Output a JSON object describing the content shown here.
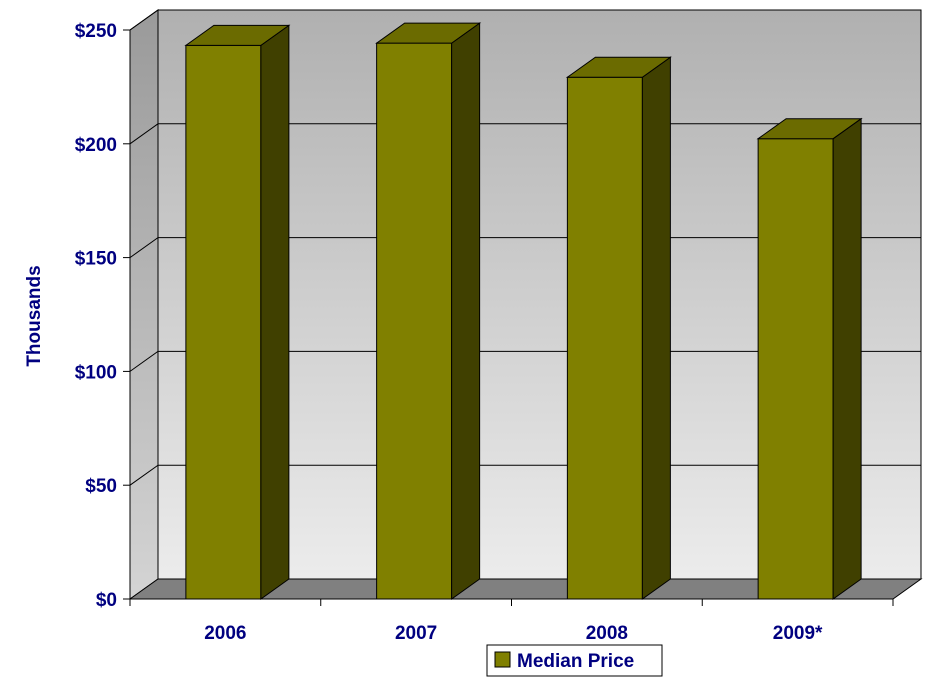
{
  "chart_data": {
    "type": "bar",
    "categories": [
      "2006",
      "2007",
      "2008",
      "2009*"
    ],
    "series": [
      {
        "name": "Median Price",
        "values": [
          245,
          246,
          231,
          204
        ]
      }
    ],
    "ylabel": "Thousands",
    "ylim": [
      0,
      250
    ],
    "y_ticks": [
      0,
      50,
      100,
      150,
      200,
      250
    ],
    "y_tick_labels": [
      "$0",
      "$50",
      "$100",
      "$150",
      "$200",
      "$250"
    ],
    "grid": true,
    "three_d": true,
    "legend": {
      "position": "bottom"
    },
    "colors": {
      "bar_front": "#808000",
      "bar_top": "#6b6b00",
      "bar_side": "#404000",
      "floor": "#808080",
      "text": "#000080",
      "wall_top": "#b0b0b0",
      "wall_bottom": "#ececec"
    }
  }
}
